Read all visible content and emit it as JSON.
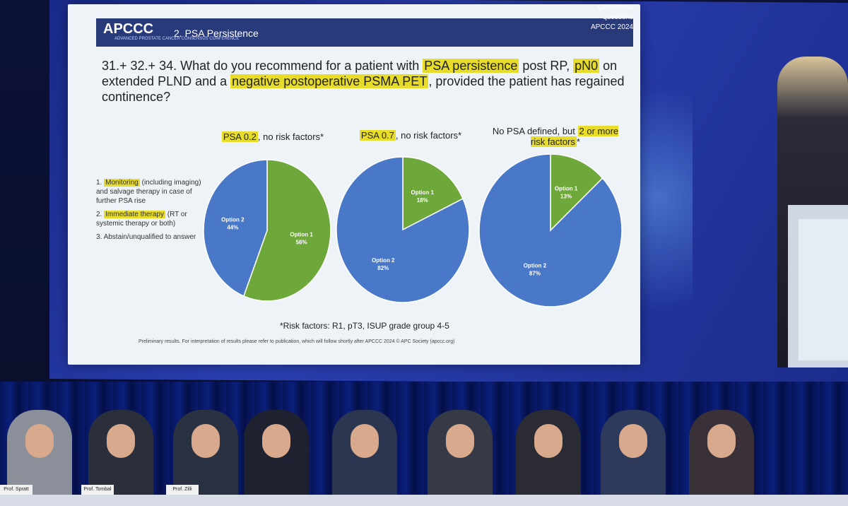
{
  "slide": {
    "logo": "APCCC",
    "logo_sub": "ADVANCED PROSTATE CANCER CONSENSUS CONFERENCE",
    "section": "2. PSA Persistence",
    "corner": [
      "Consensus",
      "questions",
      "APCCC 2024"
    ],
    "question": {
      "prefix": "31.+ 32.+ 34. What do you recommend for a patient with",
      "hl1": "PSA persistence",
      "mid1": "post RP,",
      "hl2": "pN0",
      "mid2": "on extended PLND and a",
      "hl3": "negative postoperative PSMA PET",
      "suffix": ", provided the patient has regained continence?"
    },
    "legend": [
      {
        "num": "1.",
        "hl": "Monitoring",
        "rest": "(including imaging) and salvage therapy in case of further PSA rise"
      },
      {
        "num": "2.",
        "hl": "Immediate therapy",
        "rest": "(RT or systemic therapy or both)"
      },
      {
        "num": "3.",
        "hl": "",
        "rest": "Abstain/unqualified to answer"
      }
    ],
    "footnote": "*Risk factors: R1, pT3, ISUP grade group 4-5",
    "disclaimer": "Preliminary results. For interpretation of results please refer to publication, which will follow shortly after APCCC 2024 © APC Society (apccc.org)"
  },
  "pies": [
    {
      "title_hl": "PSA 0.2",
      "title_rest": ", no risk factors*",
      "slices": [
        {
          "label": "Option 1",
          "pct_text": "56%",
          "value": 56,
          "color": "#6fa83a"
        },
        {
          "label": "Option 2",
          "pct_text": "44%",
          "value": 44,
          "color": "#4a78c8"
        }
      ]
    },
    {
      "title_hl": "PSA 0.7",
      "title_rest": ", no risk factors*",
      "slices": [
        {
          "label": "Option 1",
          "pct_text": "18%",
          "value": 18,
          "color": "#6fa83a"
        },
        {
          "label": "Option 2",
          "pct_text": "82%",
          "value": 82,
          "color": "#4a78c8"
        }
      ]
    },
    {
      "title_pre": "No PSA defined, but",
      "title_hl": "2 or more risk factors",
      "title_rest": "*",
      "slices": [
        {
          "label": "Option 1",
          "pct_text": "13%",
          "value": 13,
          "color": "#6fa83a"
        },
        {
          "label": "Option 2",
          "pct_text": "87%",
          "value": 87,
          "color": "#4a78c8"
        }
      ]
    }
  ],
  "panel": {
    "nameplates": [
      "Prof. Spratt",
      "Prof. Tombal",
      "Prof. Zilli",
      "",
      "",
      "",
      "",
      "",
      ""
    ]
  }
}
